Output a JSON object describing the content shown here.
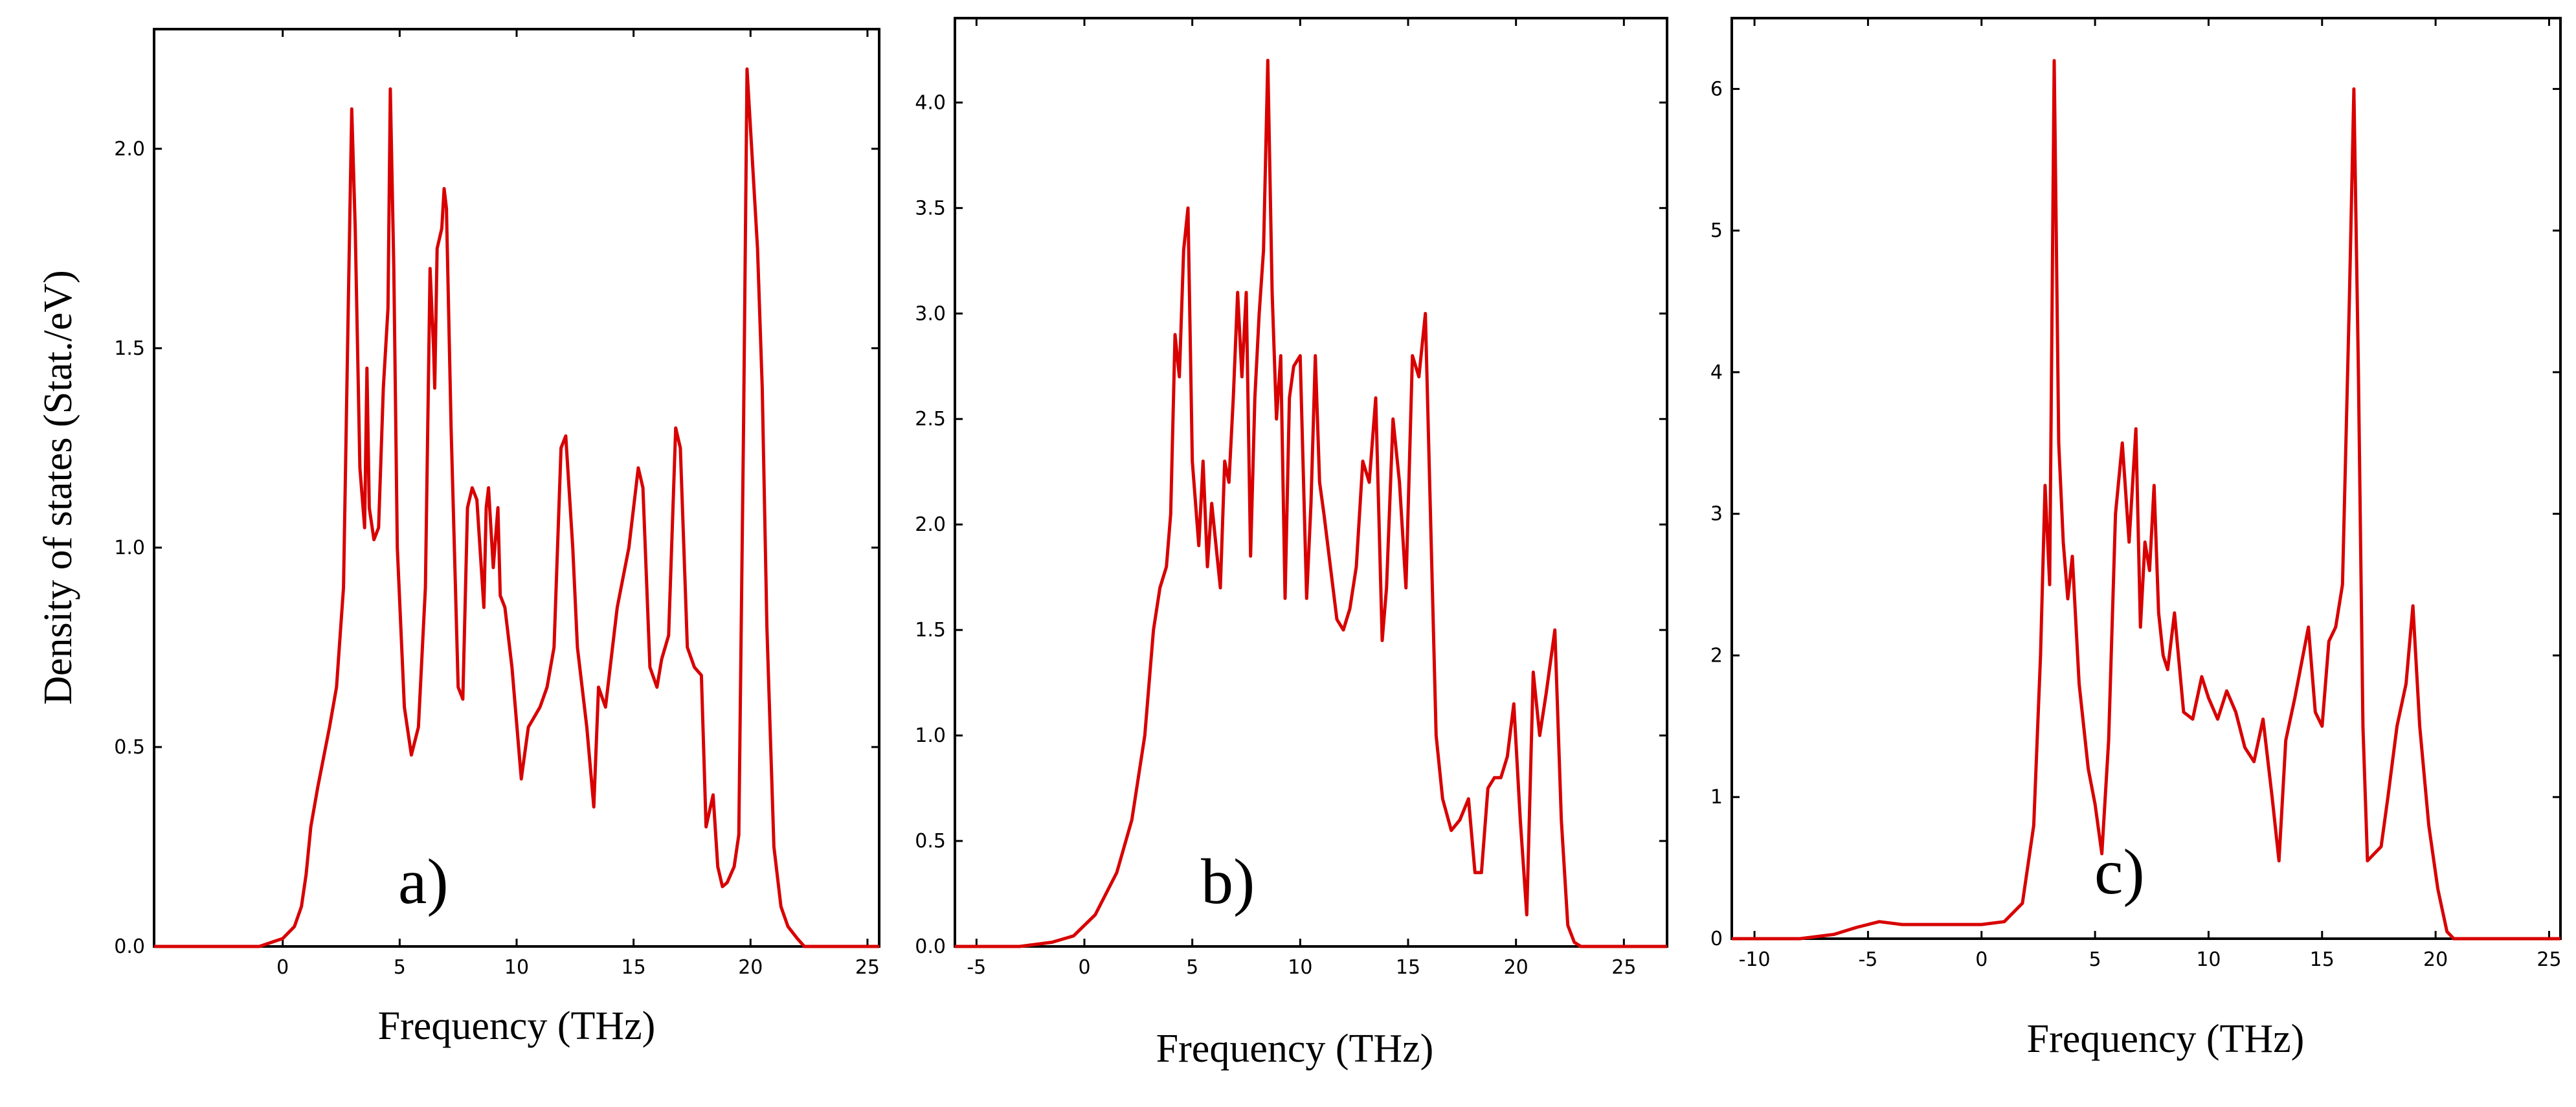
{
  "chart_data": [
    {
      "type": "line",
      "panel_label": "a)",
      "xlabel": "Frequency (THz)",
      "ylabel": "Density of states (Stat./eV)",
      "xlim": [
        -5.5,
        25.5
      ],
      "ylim": [
        0,
        2.3
      ],
      "xticks": [
        0,
        5,
        10,
        15,
        20,
        25
      ],
      "xtick_labels": [
        "0",
        "5",
        "10",
        "15",
        "20",
        "25"
      ],
      "yticks": [
        0,
        0.5,
        1.0,
        1.5,
        2.0
      ],
      "ytick_labels": [
        "0.0",
        "0.5",
        "1.0",
        "1.5",
        "2.0"
      ],
      "series_color": "#d80000",
      "x": [
        -5.5,
        -1,
        0,
        0.5,
        0.8,
        1.0,
        1.2,
        1.5,
        2.0,
        2.3,
        2.6,
        2.8,
        2.95,
        3.1,
        3.3,
        3.5,
        3.6,
        3.7,
        3.9,
        4.1,
        4.3,
        4.5,
        4.6,
        4.75,
        4.9,
        5.2,
        5.5,
        5.8,
        6.1,
        6.3,
        6.45,
        6.5,
        6.6,
        6.8,
        6.9,
        7.0,
        7.2,
        7.5,
        7.7,
        7.9,
        8.1,
        8.3,
        8.6,
        8.7,
        8.8,
        9.0,
        9.2,
        9.3,
        9.5,
        9.8,
        10.2,
        10.5,
        10.8,
        11.0,
        11.3,
        11.6,
        11.9,
        12.1,
        12.4,
        12.6,
        13.0,
        13.3,
        13.5,
        13.8,
        14.0,
        14.3,
        14.8,
        15.2,
        15.4,
        15.7,
        16.0,
        16.2,
        16.5,
        16.8,
        17.0,
        17.3,
        17.6,
        17.9,
        18.1,
        18.4,
        18.6,
        18.8,
        19.0,
        19.3,
        19.5,
        19.7,
        19.85,
        20.0,
        20.3,
        20.5,
        20.7,
        21.0,
        21.3,
        21.6,
        22.0,
        22.3,
        25.5
      ],
      "y": [
        0.0,
        0.0,
        0.02,
        0.05,
        0.1,
        0.18,
        0.3,
        0.4,
        0.55,
        0.65,
        0.9,
        1.6,
        2.1,
        1.8,
        1.2,
        1.05,
        1.45,
        1.1,
        1.02,
        1.05,
        1.4,
        1.6,
        2.15,
        1.7,
        1.0,
        0.6,
        0.48,
        0.55,
        0.9,
        1.7,
        1.5,
        1.4,
        1.75,
        1.8,
        1.9,
        1.85,
        1.3,
        0.65,
        0.62,
        1.1,
        1.15,
        1.12,
        0.85,
        1.1,
        1.15,
        0.95,
        1.1,
        0.88,
        0.85,
        0.7,
        0.42,
        0.55,
        0.58,
        0.6,
        0.65,
        0.75,
        1.25,
        1.28,
        1.0,
        0.75,
        0.55,
        0.35,
        0.65,
        0.6,
        0.7,
        0.85,
        1.0,
        1.2,
        1.15,
        0.7,
        0.65,
        0.72,
        0.78,
        1.3,
        1.25,
        0.75,
        0.7,
        0.68,
        0.3,
        0.38,
        0.2,
        0.15,
        0.16,
        0.2,
        0.28,
        1.3,
        2.2,
        2.05,
        1.75,
        1.4,
        0.8,
        0.25,
        0.1,
        0.05,
        0.02,
        0.0,
        0.0
      ]
    },
    {
      "type": "line",
      "panel_label": "b)",
      "xlabel": "Frequency (THz)",
      "ylabel": "",
      "xlim": [
        -6,
        27
      ],
      "ylim": [
        0,
        4.4
      ],
      "xticks": [
        -5,
        0,
        5,
        10,
        15,
        20,
        25
      ],
      "xtick_labels": [
        "-5",
        "0",
        "5",
        "10",
        "15",
        "20",
        "25"
      ],
      "yticks": [
        0,
        0.5,
        1.0,
        1.5,
        2.0,
        2.5,
        3.0,
        3.5,
        4.0
      ],
      "ytick_labels": [
        "0.0",
        "0.5",
        "1.0",
        "1.5",
        "2.0",
        "2.5",
        "3.0",
        "3.5",
        "4.0"
      ],
      "series_color": "#d80000",
      "x": [
        -6,
        -3,
        -1.5,
        -0.5,
        0.5,
        1.5,
        2.2,
        2.8,
        3.2,
        3.5,
        3.8,
        4.0,
        4.2,
        4.4,
        4.6,
        4.8,
        5.0,
        5.3,
        5.5,
        5.7,
        5.9,
        6.1,
        6.3,
        6.5,
        6.7,
        6.9,
        7.1,
        7.3,
        7.5,
        7.7,
        7.9,
        8.1,
        8.3,
        8.5,
        8.7,
        8.9,
        9.1,
        9.3,
        9.5,
        9.7,
        10.0,
        10.3,
        10.5,
        10.7,
        10.9,
        11.1,
        11.4,
        11.7,
        12.0,
        12.3,
        12.6,
        12.9,
        13.2,
        13.5,
        13.8,
        14.0,
        14.3,
        14.6,
        14.9,
        15.2,
        15.5,
        15.8,
        16.0,
        16.3,
        16.6,
        17.0,
        17.4,
        17.8,
        18.1,
        18.4,
        18.7,
        19.0,
        19.3,
        19.6,
        19.9,
        20.2,
        20.5,
        20.8,
        21.1,
        21.4,
        21.8,
        22.1,
        22.4,
        22.7,
        23.0,
        27
      ],
      "y": [
        0.0,
        0.0,
        0.02,
        0.05,
        0.15,
        0.35,
        0.6,
        1.0,
        1.5,
        1.7,
        1.8,
        2.05,
        2.9,
        2.7,
        3.3,
        3.5,
        2.3,
        1.9,
        2.3,
        1.8,
        2.1,
        1.9,
        1.7,
        2.3,
        2.2,
        2.6,
        3.1,
        2.7,
        3.1,
        1.85,
        2.6,
        3.0,
        3.3,
        4.2,
        3.1,
        2.5,
        2.8,
        1.65,
        2.6,
        2.75,
        2.8,
        1.65,
        2.1,
        2.8,
        2.2,
        2.05,
        1.8,
        1.55,
        1.5,
        1.6,
        1.8,
        2.3,
        2.2,
        2.6,
        1.45,
        1.7,
        2.5,
        2.2,
        1.7,
        2.8,
        2.7,
        3.0,
        2.2,
        1.0,
        0.7,
        0.55,
        0.6,
        0.7,
        0.35,
        0.35,
        0.75,
        0.8,
        0.8,
        0.9,
        1.15,
        0.6,
        0.15,
        1.3,
        1.0,
        1.2,
        1.5,
        0.6,
        0.1,
        0.02,
        0.0,
        0.0
      ]
    },
    {
      "type": "line",
      "panel_label": "c)",
      "xlabel": "Frequency (THz)",
      "ylabel": "",
      "xlim": [
        -11,
        25.5
      ],
      "ylim": [
        0,
        6.5
      ],
      "xticks": [
        -10,
        -5,
        0,
        5,
        10,
        15,
        20,
        25
      ],
      "xtick_labels": [
        "-10",
        "-5",
        "0",
        "5",
        "10",
        "15",
        "20",
        "25"
      ],
      "yticks": [
        0,
        1,
        2,
        3,
        4,
        5,
        6
      ],
      "ytick_labels": [
        "0",
        "1",
        "2",
        "3",
        "4",
        "5",
        "6"
      ],
      "series_color": "#d80000",
      "x": [
        -11,
        -8,
        -6.5,
        -5.5,
        -4.5,
        -3.5,
        -2.5,
        -1.5,
        0,
        1,
        1.8,
        2.3,
        2.6,
        2.8,
        3.0,
        3.2,
        3.4,
        3.6,
        3.8,
        4.0,
        4.3,
        4.7,
        5.0,
        5.3,
        5.6,
        5.9,
        6.2,
        6.5,
        6.8,
        7.0,
        7.2,
        7.4,
        7.6,
        7.8,
        8.0,
        8.2,
        8.5,
        8.9,
        9.3,
        9.7,
        10.0,
        10.4,
        10.8,
        11.2,
        11.6,
        12.0,
        12.4,
        12.8,
        13.1,
        13.4,
        13.8,
        14.1,
        14.4,
        14.7,
        15.0,
        15.3,
        15.6,
        15.9,
        16.2,
        16.4,
        16.6,
        16.8,
        17.0,
        17.3,
        17.6,
        17.9,
        18.3,
        18.7,
        19.0,
        19.3,
        19.7,
        20.1,
        20.5,
        20.8,
        25.5
      ],
      "y": [
        0.0,
        0.0,
        0.03,
        0.08,
        0.12,
        0.1,
        0.1,
        0.1,
        0.1,
        0.12,
        0.25,
        0.8,
        2.0,
        3.2,
        2.5,
        6.2,
        3.5,
        2.8,
        2.4,
        2.7,
        1.8,
        1.2,
        0.95,
        0.6,
        1.4,
        3.0,
        3.5,
        2.8,
        3.6,
        2.2,
        2.8,
        2.6,
        3.2,
        2.3,
        2.0,
        1.9,
        2.3,
        1.6,
        1.55,
        1.85,
        1.7,
        1.55,
        1.75,
        1.6,
        1.35,
        1.25,
        1.55,
        1.0,
        0.55,
        1.4,
        1.7,
        1.95,
        2.2,
        1.6,
        1.5,
        2.1,
        2.2,
        2.5,
        4.5,
        6.0,
        4.0,
        1.5,
        0.55,
        0.6,
        0.65,
        1.0,
        1.5,
        1.8,
        2.35,
        1.5,
        0.8,
        0.35,
        0.05,
        0.0,
        0.0
      ]
    }
  ]
}
